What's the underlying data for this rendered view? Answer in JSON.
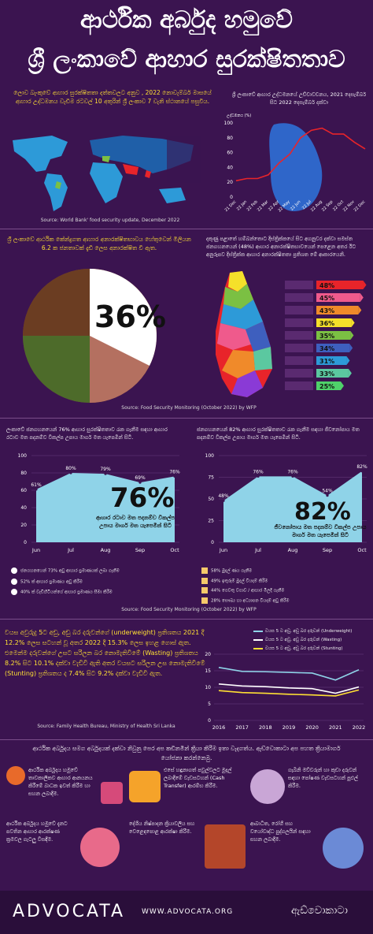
{
  "title_line1": "ආර්ථික අර්බුද හමුවේ",
  "title_line2": "ශ්‍රී ලංකාවේ ආහාර සුරක්ෂිතතාව",
  "panel1": {
    "text": "ලොව බැංකුවේ ආහාර සුරක්ෂිතතා දත්තවලට අනුව , 2022 නොවැම්බර් මාසයේ ආහාර උද්ධමනය වැඩිම රටවල් 10 අතුරින් ශ්‍රී ලංකාව 7 වැනි ස්ථානයේ පසුවිය.",
    "source": "Source: World Bank' food security update, December 2022"
  },
  "panel2": {
    "text": "ශ්‍රී ලංකාවේ ආහාර උද්ධමනයේ උච්චාවචනය, 2021 දෙසැම්බර් සිට 2022 දෙසැම්බර් දක්වා",
    "ylabel": "උද්ධමනය (%)"
  },
  "panel3": {
    "text": "ශ්‍රී ලංකාවේ ආර්ථික කේන්ද්‍රගත ආහාර අනාරක්ෂිතභාවය හේතුවෙන් මිලියන 6.2 ක ජනතාවක් දැඩි ලෙස අනාරක්ෂිත වී ඇත.",
    "pct": "36%",
    "source": "Source: Food Security Monitoring (October 2022) by WFP"
  },
  "panel4": {
    "text": "දකුණු පළාතේ හම්බන්තොට දිස්ත්‍රික්කයේ සිට අගනුවර දක්වා සමස්ත ජනගහනයෙන් (48%) ආහාර අනාරක්ෂිතභාවයෙන් පෙළෙන අතර ඊට අනුරූපව දිස්ත්‍රික්ක ආහාර අනාරක්ෂිතතා ප්‍රතිශත මේ ආකාරයෙනි."
  },
  "panel5": {
    "text": "ලංකාවේ ජනගහනයෙන් 76% ආහාර සුරක්ෂිතතාව රැක ගැනීම සඳහා ආහාර රටාව මත පදනම්ව විකල්ප උපාය මාර්ග මත යැපෙමින් සිටී.",
    "big": "76%",
    "caption": "ආහාර රටාව මත පදනම්ව විකල්ප උපාය මාර්ග මත යැපෙමින් සිටී"
  },
  "panel6": {
    "text": "ජනගහනයෙන් 82% ආහාර සුරක්ෂිතතාව රැක ගැනීම සඳහා ජීවනෝපාය මත පදනම්ව විකල්ප උපාය මාර්ග මත යැපෙමින් සිටී.",
    "big": "82%",
    "caption": "ජීවනෝපාය මත පදනම්ව විකල්ප උපාය මාර්ග මත යැපෙමින් සිටී"
  },
  "legend_left": [
    "ජනගහනයෙන් 73% අඩු ආහාර ප්‍රමාණයක් ලබා ගැනීම",
    "52% ක් ආහාර ප්‍රමාණය අඩු කිරීම",
    "40% ක් වැඩිහිටියන්ගේ ආහාර ප්‍රමාණය සීමා කිරීම"
  ],
  "legend_right": [
    "58% මුදල් ණය ගැනීම",
    "49% ඉතුරුම් මුදල් වියදම් කිරීම",
    "44% ගෙවතු වගාව / ආහාර මිලදී ගැනීම",
    "28% සෞඛ්‍ය හා අධ්‍යාපන වියදම් අඩු කිරීම"
  ],
  "source_middle": "Source: Food Security Monitoring (October 2022) by WFP",
  "panel7": {
    "text": "වයස අවුරුදු 5ට අඩු, අඩු බර දරුවන්ගේ (underweight) ප්‍රතිශතය 2021 දී 12.2% ලෙස සටහන් වූ අතර 2022 දී 15.3% ලෙස ඉහළ ගොස් ඇත. එමෙන්ම දරුවන්ගේ උසට සරිලන බර නොමැතිවීමේ (Wasting) ප්‍රතිශතය 8.2% සිට 10.1% දක්වා වැඩිවී ඇති අතර වයසට සරිලන උස නොමැතිවීමේ (Stunting) ප්‍රතිශතය ද 7.4% සිට 9.2% දක්වා වැඩිවී ඇත.",
    "source": "Source: Family Health Bureau, Ministry of Health Sri Lanka"
  },
  "trend_legend": [
    "වයස 5 ට අඩු, අඩු බර දරුවන් (Underweight)",
    "වයස 5 ට අඩු, අඩු බර දරුවන් (Wasting)",
    "වයස 5 ට අඩු, අඩු බර දරුවන් (Stunting)"
  ],
  "policy_intro": "ආර්ථික අර්බුදය සමග අර්බුදයක් දක්වා නිවුනු පෙර අප කඩිනමින් ක්‍රියා කිරීම ඉතා වැදගත්ය. ඇඩ්වොකාටා අප පහත ක්‍රියාමාර්ග යෝජනා කරන්නෙමු.",
  "policies": [
    "ආර්ථික අර්බුදය හමුවේ තාවකාලිකව ආහාර ආනයනය කිරීමේ බාධක ඉවත් කිරීම හා සහන ලබාදීම.",
    "එසේ හඳුනාගත් පවුල්වලට මුදල් ලබාදීමේ වැඩසටහන් (Cash Transfer) ආරම්භ කිරීම.",
    "ගැබිනි මව්වරුන් හා කුඩා දරුවන් සඳහා පෝෂණ වැඩසටහන් පුළුල් කිරීම.",
    "ආර්ථික අර්බුදය හමුවේ දැනට පවතින ආහාර ආරක්ෂණ ක්‍රමවල ගැටලු විසඳීම.",
    "දේශීය නිෂ්පාදන ක්‍රියාවලිය සහ වෙළෙඳපොළ ආරක්ෂා කිරීම.",
    "ආබාධිත, රෝගී සහ වයෝවෘද්ධ පුද්ගලයින් සඳහා සහන ලබාදීම."
  ],
  "footer": {
    "logo": "ADVOCATA",
    "url": "WWW.ADVOCATA.ORG",
    "logo_si": "ඇඩ්වොකාටා"
  },
  "colors": {
    "background": "#3b1450",
    "accent_yellow": "#ffe033",
    "area_fill": "#8fd3e8"
  },
  "chart_data": [
    {
      "type": "line",
      "title": "",
      "x": [
        "21 Dec",
        "22 Jan",
        "22 Feb",
        "22 Mar",
        "22 Apr",
        "22 May",
        "22 Jun",
        "22 Jul",
        "22 Aug",
        "22 Sep",
        "22 Oct",
        "22 Nov",
        "22 Dec"
      ],
      "series": [
        {
          "values": [
            22,
            25,
            25,
            30,
            46,
            58,
            80,
            90,
            93,
            85,
            85,
            74,
            65
          ]
        }
      ],
      "yticks": [
        0,
        20,
        40,
        60,
        80,
        100
      ],
      "ylim": [
        0,
        100
      ]
    },
    {
      "type": "area",
      "categories": [
        "Jun",
        "Jul",
        "Aug",
        "Sep",
        "Oct"
      ],
      "values": [
        61,
        80,
        79,
        69,
        76
      ],
      "yticks": [
        0,
        20,
        40,
        60,
        80,
        100
      ],
      "ylim": [
        0,
        100
      ]
    },
    {
      "type": "area",
      "categories": [
        "Jun",
        "Jul",
        "Aug",
        "Sep",
        "Oct"
      ],
      "values": [
        48,
        76,
        76,
        54,
        82
      ],
      "yticks": [
        0,
        25,
        50,
        75,
        100
      ],
      "ylim": [
        0,
        100
      ]
    },
    {
      "type": "bar",
      "categories": [
        "d1",
        "d2",
        "d3",
        "d4",
        "d5",
        "d6",
        "d7",
        "d8",
        "d9"
      ],
      "values": [
        48,
        45,
        43,
        36,
        35,
        34,
        31,
        33,
        25
      ],
      "labels": [
        "48%",
        "45%",
        "43%",
        "36%",
        "35%",
        "34%",
        "31%",
        "33%",
        "25%"
      ],
      "colors": [
        "#e8242a",
        "#ef5a8c",
        "#f08a2a",
        "#f5e02a",
        "#7bc043",
        "#3e5fbe",
        "#2d9ad8",
        "#5bc8a0",
        "#4fd16a"
      ]
    },
    {
      "type": "line",
      "x": [
        2016,
        2017,
        2018,
        2019,
        2020,
        2021,
        2022
      ],
      "series": [
        {
          "values": [
            16.0,
            14.8,
            14.7,
            14.5,
            14.3,
            12.2,
            15.3
          ],
          "color": "#8fd3e8"
        },
        {
          "values": [
            11.0,
            10.4,
            10.2,
            9.8,
            9.6,
            8.2,
            10.1
          ],
          "color": "#ffffff"
        },
        {
          "values": [
            9.0,
            8.4,
            8.2,
            7.9,
            7.7,
            7.4,
            9.2
          ],
          "color": "#ffe033"
        }
      ],
      "yticks": [
        0,
        5,
        10,
        15,
        20
      ],
      "ylim": [
        0,
        20
      ]
    }
  ]
}
